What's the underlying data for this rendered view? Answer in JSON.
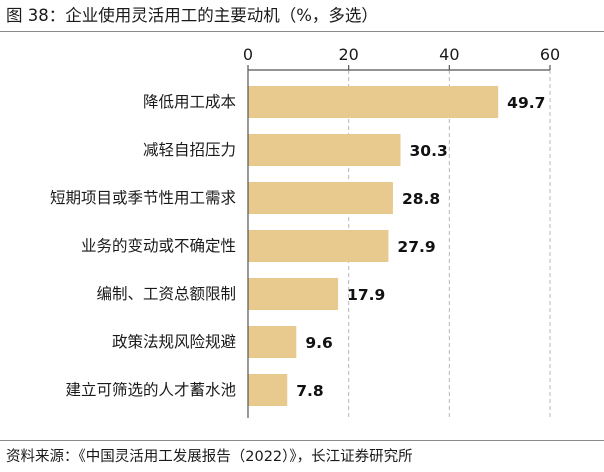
{
  "title": "图 38：企业使用灵活用工的主要动机（%，多选）",
  "source": "资料来源：《中国灵活用工发展报告（2022）》，长江证券研究所",
  "colors": {
    "bar": "#e8c98e",
    "grid": "#b8b8b8",
    "axis": "#555555"
  },
  "chart_data": {
    "type": "bar",
    "orientation": "horizontal",
    "title": "图 38：企业使用灵活用工的主要动机（%，多选）",
    "xlabel": "",
    "ylabel": "",
    "xlim": [
      0,
      60
    ],
    "xticks": [
      0,
      20,
      40,
      60
    ],
    "tick_labels": [
      "0",
      "20",
      "40",
      "60"
    ],
    "x_axis_position": "top",
    "grid": "vertical dashed",
    "categories": [
      "降低用工成本",
      "减轻自招压力",
      "短期项目或季节性用工需求",
      "业务的变动或不确定性",
      "编制、工资总额限制",
      "政策法规风险规避",
      "建立可筛选的人才蓄水池"
    ],
    "values": [
      49.7,
      30.3,
      28.8,
      27.9,
      17.9,
      9.6,
      7.8
    ],
    "value_labels": [
      "49.7",
      "30.3",
      "28.8",
      "27.9",
      "17.9",
      "9.6",
      "7.8"
    ]
  }
}
